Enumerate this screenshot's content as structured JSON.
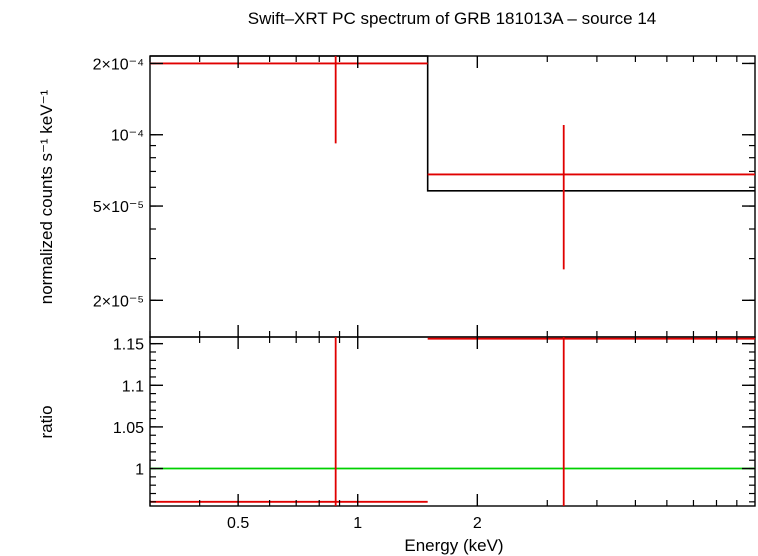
{
  "chart_data": [
    {
      "type": "line",
      "panel": "spectrum",
      "title": "Swift–XRT PC spectrum of GRB 181013A – source 14",
      "ylabel": "normalized counts s⁻¹ keV⁻¹",
      "xlabel": "",
      "xscale": "log",
      "yscale": "log",
      "xlim": [
        0.3,
        10
      ],
      "ylim": [
        1.4e-05,
        0.000215
      ],
      "y_ticks": [
        {
          "value": 0.0002,
          "label": "2×10⁻⁴"
        },
        {
          "value": 0.0001,
          "label": "10⁻⁴"
        },
        {
          "value": 5e-05,
          "label": "5×10⁻⁵"
        },
        {
          "value": 2e-05,
          "label": "2×10⁻⁵"
        }
      ],
      "data_points": {
        "color": "#e00000",
        "points": [
          {
            "x": 0.88,
            "x_lo": 0.3,
            "x_hi": 1.5,
            "y": 0.0002,
            "y_lo": 9.2e-05,
            "y_hi": 0.000215
          },
          {
            "x": 3.3,
            "x_lo": 1.5,
            "x_hi": 10,
            "y": 6.8e-05,
            "y_lo": 2.7e-05,
            "y_hi": 0.00011
          }
        ]
      },
      "model": {
        "color": "#000000",
        "steps": [
          {
            "x_lo": 0.3,
            "x_hi": 1.5,
            "y": 0.000215
          },
          {
            "x_lo": 1.5,
            "x_hi": 10,
            "y": 5.8e-05
          }
        ]
      }
    },
    {
      "type": "line",
      "panel": "ratio",
      "title": "",
      "ylabel": "ratio",
      "xlabel": "Energy (keV)",
      "xscale": "log",
      "xlim": [
        0.3,
        10
      ],
      "ylim": [
        0.955,
        1.158
      ],
      "x_ticks": [
        {
          "value": 0.5,
          "label": "0.5"
        },
        {
          "value": 1,
          "label": "1"
        },
        {
          "value": 2,
          "label": "2"
        }
      ],
      "y_ticks": [
        {
          "value": 1.15,
          "label": "1.15"
        },
        {
          "value": 1.1,
          "label": "1.1"
        },
        {
          "value": 1.05,
          "label": "1.05"
        },
        {
          "value": 1,
          "label": "1"
        }
      ],
      "reference_line": {
        "y": 1,
        "color": "#00d000"
      },
      "data_points": {
        "color": "#e00000",
        "points": [
          {
            "x": 0.88,
            "x_lo": 0.3,
            "x_hi": 1.5,
            "y": 0.96,
            "y_lo": 0.955,
            "y_hi": 1.158
          },
          {
            "x": 3.3,
            "x_lo": 1.5,
            "x_hi": 10,
            "y": 1.156,
            "y_lo": 0.955,
            "y_hi": 1.158
          }
        ]
      }
    }
  ]
}
